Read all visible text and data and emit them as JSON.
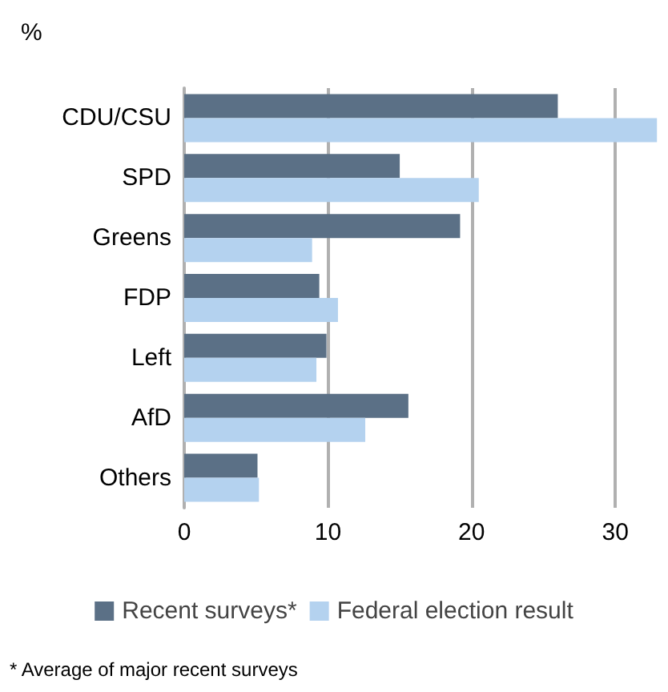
{
  "chart_data": {
    "type": "bar",
    "orientation": "horizontal",
    "title": "%",
    "categories": [
      "CDU/CSU",
      "SPD",
      "Greens",
      "FDP",
      "Left",
      "AfD",
      "Others"
    ],
    "series": [
      {
        "name": "Recent surveys*",
        "color": "#5b7086",
        "values": [
          26.0,
          15.0,
          19.2,
          9.4,
          9.9,
          15.6,
          5.1
        ]
      },
      {
        "name": "Federal election result",
        "color": "#b4d2ef",
        "values": [
          32.9,
          20.5,
          8.9,
          10.7,
          9.2,
          12.6,
          5.2
        ]
      }
    ],
    "xlim": [
      0,
      33
    ],
    "xticks": [
      0,
      10,
      20,
      30
    ],
    "grid": "x",
    "legend": "bottom",
    "annotations": [
      "* Average of major recent surveys"
    ]
  }
}
